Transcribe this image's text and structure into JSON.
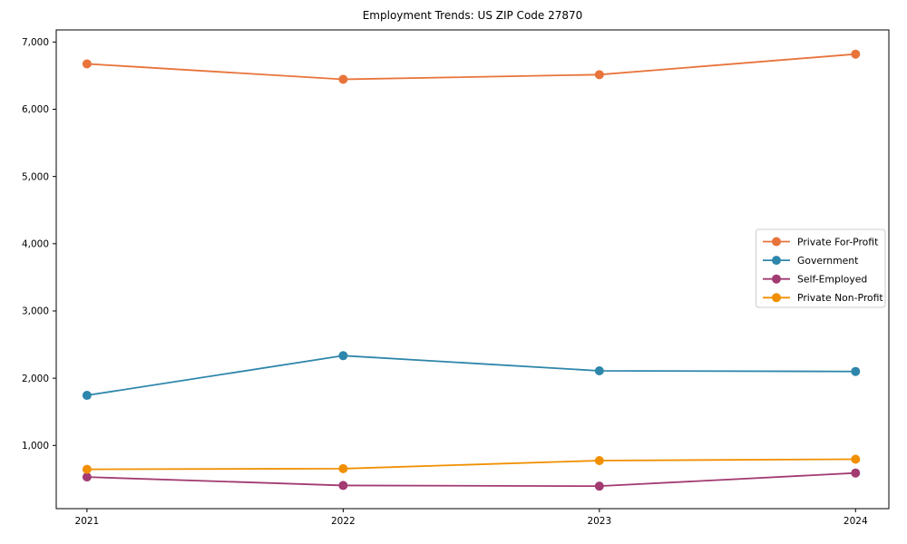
{
  "title": "Employment Trends: US ZIP Code 27870",
  "chart_data": {
    "type": "line",
    "title": "Employment Trends: US ZIP Code 27870",
    "xlabel": "",
    "ylabel": "",
    "x": [
      2021,
      2022,
      2023,
      2024
    ],
    "x_tick_labels": [
      "2021",
      "2022",
      "2023",
      "2024"
    ],
    "y_ticks": [
      1000,
      2000,
      3000,
      4000,
      5000,
      6000,
      7000
    ],
    "y_tick_labels": [
      "1,000",
      "2,000",
      "3,000",
      "4,000",
      "5,000",
      "6,000",
      "7,000"
    ],
    "xlim": [
      2020.88,
      2024.13
    ],
    "ylim": [
      60,
      7180
    ],
    "grid": false,
    "legend_position": "center right",
    "marker": "circle",
    "series": [
      {
        "name": "Private For-Profit",
        "color": "#E8743B",
        "values": [
          6675,
          6445,
          6515,
          6820
        ]
      },
      {
        "name": "Government",
        "color": "#2E86AB",
        "values": [
          1745,
          2335,
          2110,
          2100
        ]
      },
      {
        "name": "Self-Employed",
        "color": "#A23B72",
        "values": [
          530,
          405,
          395,
          590
        ]
      },
      {
        "name": "Private Non-Profit",
        "color": "#F18F01",
        "values": [
          645,
          655,
          775,
          795
        ]
      }
    ]
  }
}
